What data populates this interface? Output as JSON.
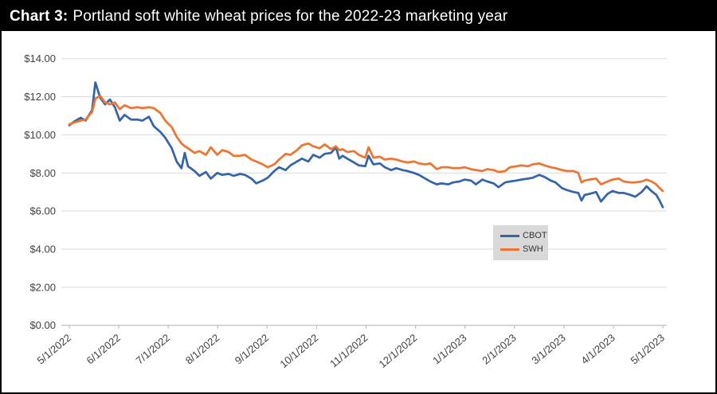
{
  "window": {
    "title_prefix": "Chart 3:",
    "title_rest": "Portland soft white wheat prices for the 2022-23 marketing year"
  },
  "colors": {
    "title_bar_bg": "#000000",
    "title_text": "#ffffff",
    "gridline": "#d9d9d9",
    "axis_line": "#bfbfbf",
    "axis_text": "#404040",
    "legend_bg": "#d9d9d9",
    "cbot_blue": "#3465A8",
    "swh_orange": "#ED7431"
  },
  "chart_data": {
    "type": "line",
    "title": "Chart 3: Portland soft white wheat prices for the 2022-23 marketing year",
    "xlabel": "",
    "ylabel": "",
    "ylim": [
      0,
      14
    ],
    "y_step": 2,
    "grid": "horizontal",
    "legend_position": "center-right",
    "y_tick_labels": [
      "$14.00",
      "$12.00",
      "$10.00",
      "$8.00",
      "$6.00",
      "$4.00",
      "$2.00",
      "$0.00"
    ],
    "x_tick_labels": [
      "5/1/2022",
      "6/1/2022",
      "7/1/2022",
      "8/1/2022",
      "9/1/2022",
      "10/1/2022",
      "11/1/2022",
      "12/1/2022",
      "1/1/2023",
      "2/1/2023",
      "3/1/2023",
      "4/1/2023",
      "5/1/2023"
    ],
    "x_axis_range_days": 365,
    "x_days": [
      0,
      3,
      7,
      10,
      14,
      16,
      19,
      22,
      25,
      28,
      31,
      34,
      38,
      42,
      45,
      49,
      52,
      56,
      59,
      63,
      66,
      69,
      71,
      73,
      77,
      80,
      84,
      87,
      91,
      94,
      98,
      101,
      105,
      108,
      112,
      115,
      119,
      122,
      126,
      129,
      133,
      136,
      140,
      143,
      147,
      150,
      154,
      157,
      161,
      164,
      166,
      168,
      171,
      175,
      178,
      182,
      184,
      187,
      191,
      194,
      198,
      201,
      205,
      208,
      212,
      215,
      219,
      222,
      226,
      229,
      233,
      236,
      240,
      243,
      247,
      250,
      254,
      257,
      261,
      264,
      268,
      271,
      275,
      278,
      282,
      285,
      289,
      292,
      296,
      299,
      303,
      306,
      310,
      313,
      315,
      317,
      320,
      324,
      327,
      331,
      334,
      338,
      341,
      345,
      348,
      352,
      355,
      358,
      361,
      363,
      365
    ],
    "series": [
      {
        "name": "CBOT",
        "color": "#3465A8",
        "values": [
          10.5,
          10.7,
          10.9,
          10.75,
          11.3,
          12.75,
          11.95,
          11.6,
          11.85,
          11.45,
          10.75,
          11.05,
          10.8,
          10.8,
          10.75,
          10.95,
          10.45,
          10.15,
          9.85,
          9.3,
          8.6,
          8.25,
          9.05,
          8.35,
          8.1,
          7.85,
          8.05,
          7.7,
          8.0,
          7.9,
          7.95,
          7.85,
          7.95,
          7.9,
          7.7,
          7.45,
          7.6,
          7.75,
          8.1,
          8.3,
          8.15,
          8.4,
          8.6,
          8.75,
          8.6,
          8.95,
          8.8,
          9.0,
          9.05,
          9.35,
          8.75,
          8.9,
          8.75,
          8.55,
          8.4,
          8.35,
          8.9,
          8.45,
          8.5,
          8.3,
          8.15,
          8.25,
          8.15,
          8.1,
          8.0,
          7.9,
          7.7,
          7.55,
          7.4,
          7.45,
          7.4,
          7.5,
          7.55,
          7.65,
          7.6,
          7.4,
          7.65,
          7.55,
          7.45,
          7.25,
          7.5,
          7.55,
          7.6,
          7.65,
          7.7,
          7.75,
          7.9,
          7.8,
          7.6,
          7.5,
          7.2,
          7.1,
          7.0,
          6.95,
          6.55,
          6.85,
          6.9,
          7.0,
          6.5,
          6.9,
          7.05,
          6.95,
          6.95,
          6.85,
          6.75,
          7.0,
          7.3,
          7.05,
          6.85,
          6.55,
          6.2
        ]
      },
      {
        "name": "SWH",
        "color": "#ED7431",
        "values": [
          10.55,
          10.65,
          10.75,
          10.8,
          11.2,
          11.9,
          12.05,
          11.7,
          11.6,
          11.7,
          11.35,
          11.55,
          11.4,
          11.45,
          11.4,
          11.45,
          11.4,
          11.15,
          10.75,
          10.4,
          9.9,
          9.55,
          9.4,
          9.3,
          9.05,
          9.15,
          8.95,
          9.35,
          8.95,
          9.2,
          9.1,
          8.9,
          8.9,
          8.95,
          8.7,
          8.6,
          8.45,
          8.3,
          8.45,
          8.7,
          9.0,
          8.95,
          9.2,
          9.45,
          9.55,
          9.4,
          9.3,
          9.5,
          9.25,
          9.4,
          9.2,
          9.25,
          9.1,
          9.15,
          8.95,
          8.8,
          9.35,
          8.8,
          8.85,
          8.7,
          8.75,
          8.7,
          8.6,
          8.55,
          8.6,
          8.5,
          8.45,
          8.5,
          8.2,
          8.3,
          8.3,
          8.25,
          8.25,
          8.3,
          8.2,
          8.15,
          8.1,
          8.2,
          8.15,
          8.05,
          8.1,
          8.3,
          8.35,
          8.4,
          8.35,
          8.45,
          8.5,
          8.4,
          8.3,
          8.25,
          8.15,
          8.1,
          8.1,
          8.0,
          7.5,
          7.6,
          7.65,
          7.7,
          7.4,
          7.55,
          7.65,
          7.7,
          7.55,
          7.5,
          7.5,
          7.55,
          7.65,
          7.55,
          7.4,
          7.2,
          7.05
        ]
      }
    ]
  },
  "legend": {
    "items": [
      {
        "label": "CBOT",
        "color": "#3465A8"
      },
      {
        "label": "SWH",
        "color": "#ED7431"
      }
    ]
  }
}
